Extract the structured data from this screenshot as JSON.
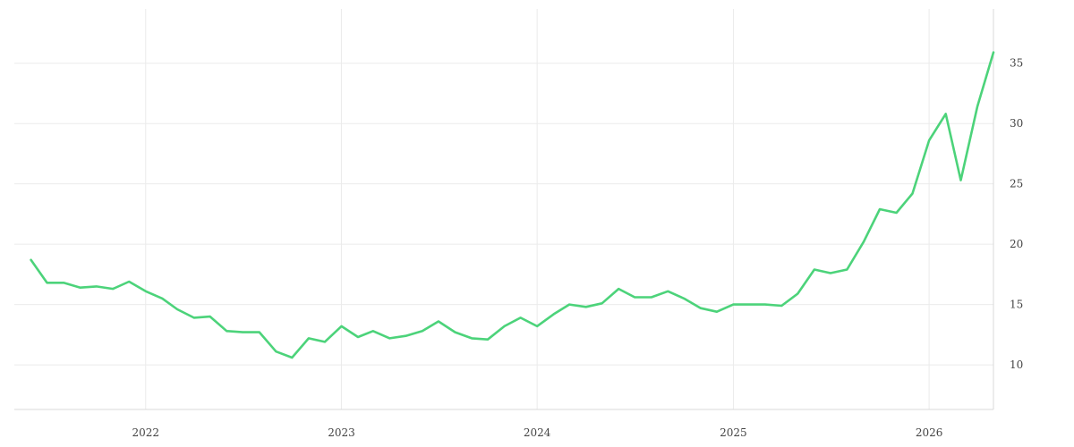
{
  "chart_data": {
    "type": "line",
    "title": "",
    "xlabel": "",
    "ylabel": "",
    "x_axis": {
      "type": "date",
      "range": [
        "2021-05-01",
        "2026-05-01"
      ],
      "ticks": [
        {
          "value": "2022-01-01",
          "label": "2022"
        },
        {
          "value": "2023-01-01",
          "label": "2023"
        },
        {
          "value": "2024-01-01",
          "label": "2024"
        },
        {
          "value": "2025-01-01",
          "label": "2025"
        },
        {
          "value": "2026-01-01",
          "label": "2026"
        }
      ]
    },
    "y_axis": {
      "position": "right",
      "range": [
        6.3,
        39.5
      ],
      "ticks": [
        10,
        15,
        20,
        25,
        30,
        35
      ]
    },
    "grid": true,
    "legend": "none",
    "series": [
      {
        "color": "#4cd37a",
        "points": [
          [
            "2021-06",
            18.7
          ],
          [
            "2021-07",
            16.8
          ],
          [
            "2021-08",
            16.8
          ],
          [
            "2021-09",
            16.4
          ],
          [
            "2021-10",
            16.5
          ],
          [
            "2021-11",
            16.3
          ],
          [
            "2021-12",
            16.9
          ],
          [
            "2022-01",
            16.1
          ],
          [
            "2022-02",
            15.5
          ],
          [
            "2022-03",
            14.6
          ],
          [
            "2022-04",
            13.9
          ],
          [
            "2022-05",
            14.0
          ],
          [
            "2022-06",
            12.8
          ],
          [
            "2022-07",
            12.7
          ],
          [
            "2022-08",
            12.7
          ],
          [
            "2022-09",
            11.1
          ],
          [
            "2022-10",
            10.6
          ],
          [
            "2022-11",
            12.2
          ],
          [
            "2022-12",
            11.9
          ],
          [
            "2023-01",
            13.2
          ],
          [
            "2023-02",
            12.3
          ],
          [
            "2023-03",
            12.8
          ],
          [
            "2023-04",
            12.2
          ],
          [
            "2023-05",
            12.4
          ],
          [
            "2023-06",
            12.8
          ],
          [
            "2023-07",
            13.6
          ],
          [
            "2023-08",
            12.7
          ],
          [
            "2023-09",
            12.2
          ],
          [
            "2023-10",
            12.1
          ],
          [
            "2023-11",
            13.2
          ],
          [
            "2023-12",
            13.9
          ],
          [
            "2024-01",
            13.2
          ],
          [
            "2024-02",
            14.2
          ],
          [
            "2024-03",
            15.0
          ],
          [
            "2024-04",
            14.8
          ],
          [
            "2024-05",
            15.1
          ],
          [
            "2024-06",
            16.3
          ],
          [
            "2024-07",
            15.6
          ],
          [
            "2024-08",
            15.6
          ],
          [
            "2024-09",
            16.1
          ],
          [
            "2024-10",
            15.5
          ],
          [
            "2024-11",
            14.7
          ],
          [
            "2024-12",
            14.4
          ],
          [
            "2025-01",
            15.0
          ],
          [
            "2025-02",
            15.0
          ],
          [
            "2025-03",
            15.0
          ],
          [
            "2025-04",
            14.9
          ],
          [
            "2025-05",
            15.9
          ],
          [
            "2025-06",
            17.9
          ],
          [
            "2025-07",
            17.6
          ],
          [
            "2025-08",
            17.9
          ],
          [
            "2025-09",
            20.2
          ],
          [
            "2025-10",
            22.9
          ],
          [
            "2025-11",
            22.6
          ],
          [
            "2025-12",
            24.2
          ],
          [
            "2026-01",
            28.6
          ],
          [
            "2026-02",
            30.8
          ],
          [
            "2026-03",
            25.3
          ],
          [
            "2026-04",
            31.4
          ],
          [
            "2026-05",
            35.9
          ]
        ]
      }
    ]
  }
}
